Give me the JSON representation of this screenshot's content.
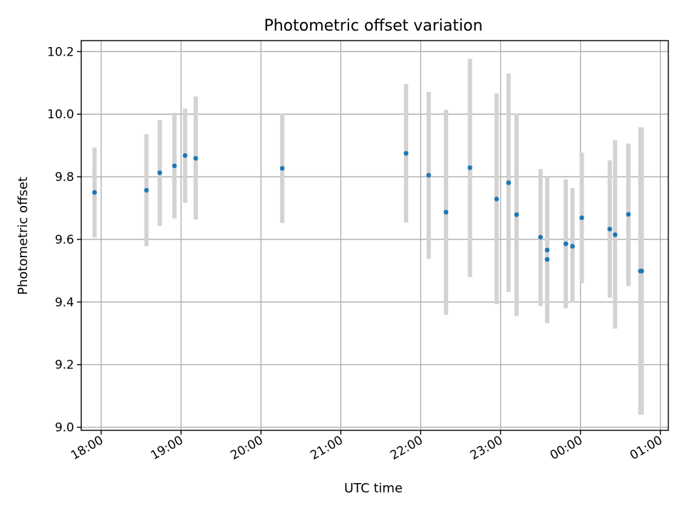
{
  "chart_data": {
    "type": "scatter",
    "title": "Photometric offset variation",
    "xlabel": "UTC time",
    "ylabel": "Photometric offset",
    "xlim": [
      "17:45",
      "01:06"
    ],
    "ylim": [
      8.99,
      10.235
    ],
    "grid": true,
    "colors": {
      "point": "#1f77b4",
      "error_bar": "#d3d3d3"
    },
    "x_ticks": [
      "18:00",
      "19:00",
      "20:00",
      "21:00",
      "22:00",
      "23:00",
      "00:00",
      "01:00"
    ],
    "y_ticks": [
      "9.0",
      "9.2",
      "9.4",
      "9.6",
      "9.8",
      "10.0",
      "10.2"
    ],
    "series": [
      {
        "points": [
          {
            "x": "17:55",
            "y": 9.75,
            "ylow": 9.606,
            "yhigh": 9.893
          },
          {
            "x": "18:34",
            "y": 9.757,
            "ylow": 9.578,
            "yhigh": 9.936
          },
          {
            "x": "18:44",
            "y": 9.813,
            "ylow": 9.643,
            "yhigh": 9.982
          },
          {
            "x": "18:55",
            "y": 9.835,
            "ylow": 9.667,
            "yhigh": 10.004
          },
          {
            "x": "19:03",
            "y": 9.868,
            "ylow": 9.717,
            "yhigh": 10.018
          },
          {
            "x": "19:11",
            "y": 9.859,
            "ylow": 9.663,
            "yhigh": 10.057
          },
          {
            "x": "20:16",
            "y": 9.827,
            "ylow": 9.653,
            "yhigh": 10.002
          },
          {
            "x": "21:49",
            "y": 9.875,
            "ylow": 9.654,
            "yhigh": 10.096
          },
          {
            "x": "22:06",
            "y": 9.805,
            "ylow": 9.538,
            "yhigh": 10.071
          },
          {
            "x": "22:19",
            "y": 9.687,
            "ylow": 9.359,
            "yhigh": 10.014
          },
          {
            "x": "22:37",
            "y": 9.829,
            "ylow": 9.48,
            "yhigh": 10.177
          },
          {
            "x": "22:57",
            "y": 9.729,
            "ylow": 9.393,
            "yhigh": 10.066
          },
          {
            "x": "23:06",
            "y": 9.781,
            "ylow": 9.432,
            "yhigh": 10.13
          },
          {
            "x": "23:12",
            "y": 9.679,
            "ylow": 9.355,
            "yhigh": 10.002
          },
          {
            "x": "23:30",
            "y": 9.607,
            "ylow": 9.387,
            "yhigh": 9.825
          },
          {
            "x": "23:35",
            "y": 9.566,
            "ylow": 9.332,
            "yhigh": 9.8
          },
          {
            "x": "23:35",
            "y": 9.536,
            "ylow": 9.336,
            "yhigh": 9.737
          },
          {
            "x": "23:49",
            "y": 9.586,
            "ylow": 9.38,
            "yhigh": 9.792
          },
          {
            "x": "23:54",
            "y": 9.578,
            "ylow": 9.398,
            "yhigh": 9.764
          },
          {
            "x": "00:01",
            "y": 9.669,
            "ylow": 9.46,
            "yhigh": 9.877
          },
          {
            "x": "00:22",
            "y": 9.633,
            "ylow": 9.414,
            "yhigh": 9.853
          },
          {
            "x": "00:26",
            "y": 9.615,
            "ylow": 9.315,
            "yhigh": 9.917
          },
          {
            "x": "00:36",
            "y": 9.68,
            "ylow": 9.451,
            "yhigh": 9.906
          },
          {
            "x": "00:45",
            "y": 9.499,
            "ylow": 9.04,
            "yhigh": 9.958
          },
          {
            "x": "00:46",
            "y": 9.499,
            "ylow": 9.04,
            "yhigh": 9.958
          }
        ]
      }
    ]
  }
}
